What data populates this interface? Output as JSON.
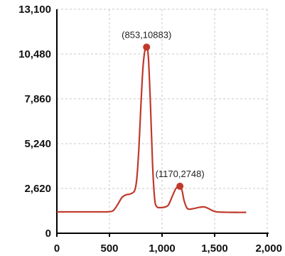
{
  "chart_data": {
    "type": "line",
    "title": "",
    "xlabel": "",
    "ylabel": "",
    "xlim": [
      0,
      2000
    ],
    "ylim": [
      0,
      13100
    ],
    "x_ticks": [
      0,
      500,
      1000,
      1500,
      2000
    ],
    "x_tick_labels": [
      "0",
      "500",
      "1,000",
      "1,500",
      "2,000"
    ],
    "y_ticks": [
      0,
      2620,
      5240,
      7860,
      10480,
      13100
    ],
    "y_tick_labels": [
      "0",
      "2,620",
      "5,240",
      "7,860",
      "10,480",
      "13,100"
    ],
    "grid": true,
    "colors": {
      "line": "#c0392b",
      "grid": "#c8c8c8",
      "axis": "#000000"
    },
    "series": [
      {
        "x": [
          0,
          100,
          200,
          300,
          400,
          500,
          540,
          580,
          620,
          660,
          700,
          740,
          760,
          780,
          800,
          820,
          840,
          853,
          870,
          890,
          910,
          930,
          950,
          980,
          1020,
          1060,
          1100,
          1130,
          1150,
          1170,
          1190,
          1210,
          1240,
          1280,
          1320,
          1360,
          1400,
          1440,
          1480,
          1520,
          1600,
          1700,
          1800
        ],
        "y": [
          1250,
          1250,
          1250,
          1250,
          1250,
          1260,
          1350,
          1700,
          2100,
          2250,
          2300,
          2500,
          3200,
          5000,
          7600,
          9800,
          10800,
          10883,
          10300,
          7500,
          4000,
          2000,
          1550,
          1500,
          1520,
          1650,
          2200,
          2600,
          2720,
          2748,
          2500,
          1900,
          1450,
          1420,
          1470,
          1520,
          1540,
          1450,
          1320,
          1250,
          1230,
          1220,
          1220
        ]
      }
    ],
    "annotations": [
      {
        "x": 853,
        "y": 10883,
        "text": "(853,10883)"
      },
      {
        "x": 1170,
        "y": 2748,
        "text": "(1170,2748)"
      }
    ]
  }
}
